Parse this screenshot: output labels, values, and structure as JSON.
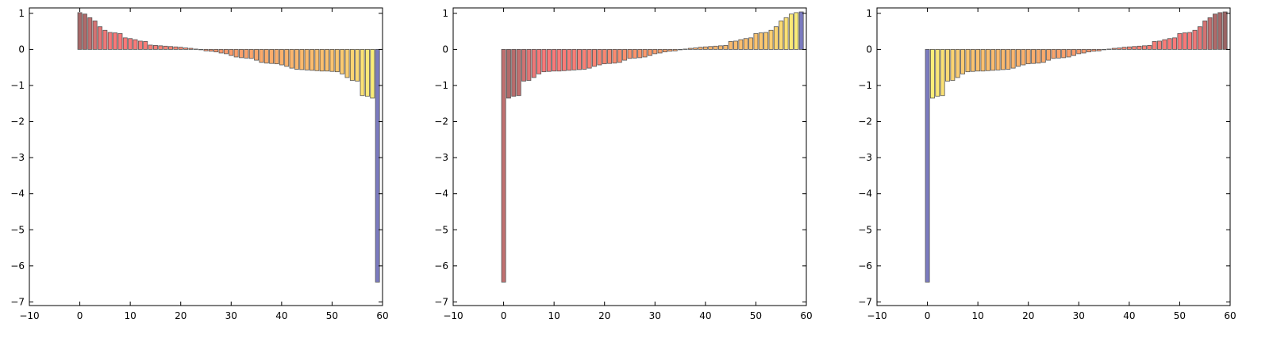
{
  "chart_data": [
    {
      "type": "bar",
      "xlim": [
        -10,
        60
      ],
      "ylim": [
        -7.1,
        1.15
      ],
      "xticks": [
        -10,
        0,
        10,
        20,
        30,
        40,
        50,
        60
      ],
      "yticks": [
        1,
        0,
        -1,
        -2,
        -3,
        -4,
        -5,
        -6,
        -7
      ],
      "xtick_labels": [
        "−10",
        "0",
        "10",
        "20",
        "30",
        "40",
        "50",
        "60"
      ],
      "ytick_labels": [
        "1",
        "0",
        "−1",
        "−2",
        "−3",
        "−4",
        "−5",
        "−6",
        "−7"
      ],
      "x": [
        0,
        1,
        2,
        3,
        4,
        5,
        6,
        7,
        8,
        9,
        10,
        11,
        12,
        13,
        14,
        15,
        16,
        17,
        18,
        19,
        20,
        21,
        22,
        23,
        24,
        25,
        26,
        27,
        28,
        29,
        30,
        31,
        32,
        33,
        34,
        35,
        36,
        37,
        38,
        39,
        40,
        41,
        42,
        43,
        44,
        45,
        46,
        47,
        48,
        49,
        50,
        51,
        52,
        53,
        54,
        55,
        56,
        57,
        58,
        59
      ],
      "values": [
        1.02,
        0.98,
        0.88,
        0.79,
        0.63,
        0.53,
        0.47,
        0.46,
        0.44,
        0.32,
        0.3,
        0.27,
        0.23,
        0.22,
        0.12,
        0.11,
        0.1,
        0.09,
        0.08,
        0.07,
        0.06,
        0.04,
        0.03,
        0.01,
        0,
        -0.04,
        -0.05,
        -0.07,
        -0.1,
        -0.12,
        -0.17,
        -0.21,
        -0.23,
        -0.24,
        -0.25,
        -0.3,
        -0.36,
        -0.38,
        -0.39,
        -0.4,
        -0.43,
        -0.47,
        -0.52,
        -0.55,
        -0.56,
        -0.57,
        -0.58,
        -0.59,
        -0.6,
        -0.6,
        -0.61,
        -0.62,
        -0.68,
        -0.78,
        -0.86,
        -0.88,
        -1.28,
        -1.3,
        -1.35,
        -6.45
      ],
      "colors": [
        "#a86868",
        "#b06a6a",
        "#c26e6e",
        "#d47272",
        "#e67676",
        "#ef7777",
        "#f67878",
        "#f97878",
        "#fa7878",
        "#fa7878",
        "#fa7979",
        "#fa7a78",
        "#fa7b77",
        "#fa7c77",
        "#fa7d76",
        "#fa7e76",
        "#fa8075",
        "#fa8174",
        "#fa8373",
        "#fa8572",
        "#fa8771",
        "#fa8970",
        "#fa8b6f",
        "#fa8d6e",
        "#fa906e",
        "#fa926d",
        "#fb946c",
        "#fb966c",
        "#fb986b",
        "#fb9a6b",
        "#fb9c6b",
        "#fb9f6b",
        "#fba16b",
        "#fba36b",
        "#fba56b",
        "#fba86b",
        "#fbaa6b",
        "#fbac6b",
        "#fbad6c",
        "#fbaf6c",
        "#fbb16c",
        "#fbb36c",
        "#fbb56d",
        "#fbb76d",
        "#fbb96d",
        "#fbba6d",
        "#fbbc6e",
        "#fbbe6e",
        "#fbbf6e",
        "#fbc16e",
        "#fbc36f",
        "#fbc66f",
        "#fbca70",
        "#fbce71",
        "#fbd472",
        "#fbda73",
        "#fbe174",
        "#fbe876",
        "#fbed78",
        "#7b7bbf"
      ]
    },
    {
      "type": "bar",
      "xlim": [
        -10,
        60
      ],
      "ylim": [
        -7.1,
        1.15
      ],
      "xticks": [
        -10,
        0,
        10,
        20,
        30,
        40,
        50,
        60
      ],
      "yticks": [
        1,
        0,
        -1,
        -2,
        -3,
        -4,
        -5,
        -6,
        -7
      ],
      "xtick_labels": [
        "−10",
        "0",
        "10",
        "20",
        "30",
        "40",
        "50",
        "60"
      ],
      "ytick_labels": [
        "1",
        "0",
        "−1",
        "−2",
        "−3",
        "−4",
        "−5",
        "−6",
        "−7"
      ],
      "x": [
        0,
        1,
        2,
        3,
        4,
        5,
        6,
        7,
        8,
        9,
        10,
        11,
        12,
        13,
        14,
        15,
        16,
        17,
        18,
        19,
        20,
        21,
        22,
        23,
        24,
        25,
        26,
        27,
        28,
        29,
        30,
        31,
        32,
        33,
        34,
        35,
        36,
        37,
        38,
        39,
        40,
        41,
        42,
        43,
        44,
        45,
        46,
        47,
        48,
        49,
        50,
        51,
        52,
        53,
        54,
        55,
        56,
        57,
        58,
        59
      ],
      "values": [
        -6.45,
        -1.35,
        -1.3,
        -1.28,
        -0.88,
        -0.86,
        -0.78,
        -0.68,
        -0.62,
        -0.61,
        -0.6,
        -0.6,
        -0.59,
        -0.58,
        -0.57,
        -0.56,
        -0.55,
        -0.52,
        -0.47,
        -0.43,
        -0.4,
        -0.39,
        -0.38,
        -0.36,
        -0.3,
        -0.25,
        -0.24,
        -0.23,
        -0.21,
        -0.17,
        -0.12,
        -0.1,
        -0.07,
        -0.05,
        -0.04,
        0,
        0.01,
        0.03,
        0.04,
        0.06,
        0.07,
        0.08,
        0.09,
        0.1,
        0.11,
        0.22,
        0.23,
        0.27,
        0.3,
        0.32,
        0.44,
        0.46,
        0.47,
        0.53,
        0.63,
        0.79,
        0.88,
        0.98,
        1.02,
        1.04
      ],
      "colors": [
        "#c07070",
        "#b06a6a",
        "#b86c6c",
        "#c26e6e",
        "#d07272",
        "#e07575",
        "#ec7777",
        "#f67878",
        "#f97878",
        "#fa7878",
        "#fa7979",
        "#fa7a78",
        "#fa7b77",
        "#fa7c77",
        "#fa7d76",
        "#fa7e76",
        "#fa8075",
        "#fa8174",
        "#fa8373",
        "#fa8572",
        "#fa8771",
        "#fa8970",
        "#fa8b6f",
        "#fa8d6e",
        "#fa906e",
        "#fa926d",
        "#fb946c",
        "#fb966c",
        "#fb986b",
        "#fb9a6b",
        "#fb9c6b",
        "#fb9f6b",
        "#fba16b",
        "#fba36b",
        "#fba56b",
        "#fba86b",
        "#fbaa6b",
        "#fbac6b",
        "#fbad6c",
        "#fbaf6c",
        "#fbb16c",
        "#fbb36c",
        "#fbb56d",
        "#fbb76d",
        "#fbb96d",
        "#fbba6d",
        "#fbbc6e",
        "#fbbe6e",
        "#fbbf6e",
        "#fbc16e",
        "#fbc36f",
        "#fbc66f",
        "#fbca70",
        "#fbce71",
        "#fbd472",
        "#fbda73",
        "#fbe174",
        "#fbe876",
        "#fbed78",
        "#7b7bbf"
      ]
    },
    {
      "type": "bar",
      "xlim": [
        -10,
        60
      ],
      "ylim": [
        -7.1,
        1.15
      ],
      "xticks": [
        -10,
        0,
        10,
        20,
        30,
        40,
        50,
        60
      ],
      "yticks": [
        1,
        0,
        -1,
        -2,
        -3,
        -4,
        -5,
        -6,
        -7
      ],
      "xtick_labels": [
        "−10",
        "0",
        "10",
        "20",
        "30",
        "40",
        "50",
        "60"
      ],
      "ytick_labels": [
        "1",
        "0",
        "−1",
        "−2",
        "−3",
        "−4",
        "−5",
        "−6",
        "−7"
      ],
      "x": [
        0,
        1,
        2,
        3,
        4,
        5,
        6,
        7,
        8,
        9,
        10,
        11,
        12,
        13,
        14,
        15,
        16,
        17,
        18,
        19,
        20,
        21,
        22,
        23,
        24,
        25,
        26,
        27,
        28,
        29,
        30,
        31,
        32,
        33,
        34,
        35,
        36,
        37,
        38,
        39,
        40,
        41,
        42,
        43,
        44,
        45,
        46,
        47,
        48,
        49,
        50,
        51,
        52,
        53,
        54,
        55,
        56,
        57,
        58,
        59
      ],
      "values": [
        -6.45,
        -1.35,
        -1.3,
        -1.28,
        -0.88,
        -0.86,
        -0.78,
        -0.68,
        -0.62,
        -0.61,
        -0.6,
        -0.6,
        -0.59,
        -0.58,
        -0.57,
        -0.56,
        -0.55,
        -0.52,
        -0.47,
        -0.43,
        -0.4,
        -0.39,
        -0.38,
        -0.36,
        -0.3,
        -0.25,
        -0.24,
        -0.23,
        -0.21,
        -0.17,
        -0.12,
        -0.1,
        -0.07,
        -0.05,
        -0.04,
        0,
        0.01,
        0.03,
        0.04,
        0.06,
        0.07,
        0.08,
        0.09,
        0.1,
        0.11,
        0.22,
        0.23,
        0.27,
        0.3,
        0.32,
        0.44,
        0.46,
        0.47,
        0.53,
        0.63,
        0.79,
        0.88,
        0.98,
        1.02,
        1.04
      ],
      "colors": [
        "#7b7bbf",
        "#fbed78",
        "#fbe876",
        "#fbe174",
        "#fbda73",
        "#fbd472",
        "#fbce71",
        "#fbca70",
        "#fbc66f",
        "#fbc36f",
        "#fbc16e",
        "#fbbf6e",
        "#fbbe6e",
        "#fbbc6e",
        "#fbba6d",
        "#fbb96d",
        "#fbb76d",
        "#fbb56d",
        "#fbb36c",
        "#fbb16c",
        "#fbaf6c",
        "#fbad6c",
        "#fbac6b",
        "#fbaa6b",
        "#fba86b",
        "#fba56b",
        "#fba36b",
        "#fba16b",
        "#fb9f6b",
        "#fb9c6b",
        "#fb9a6b",
        "#fb986b",
        "#fb966c",
        "#fb946c",
        "#fa926d",
        "#fa906e",
        "#fa8d6e",
        "#fa8b6f",
        "#fa8970",
        "#fa8771",
        "#fa8572",
        "#fa8373",
        "#fa8174",
        "#fa8075",
        "#fa7e76",
        "#fa7d76",
        "#fa7c77",
        "#fa7b77",
        "#fa7a78",
        "#fa7979",
        "#fa7878",
        "#f97878",
        "#f67878",
        "#ef7777",
        "#e67676",
        "#d47272",
        "#c26e6e",
        "#b06a6a",
        "#a86868",
        "#9a6464"
      ]
    }
  ]
}
